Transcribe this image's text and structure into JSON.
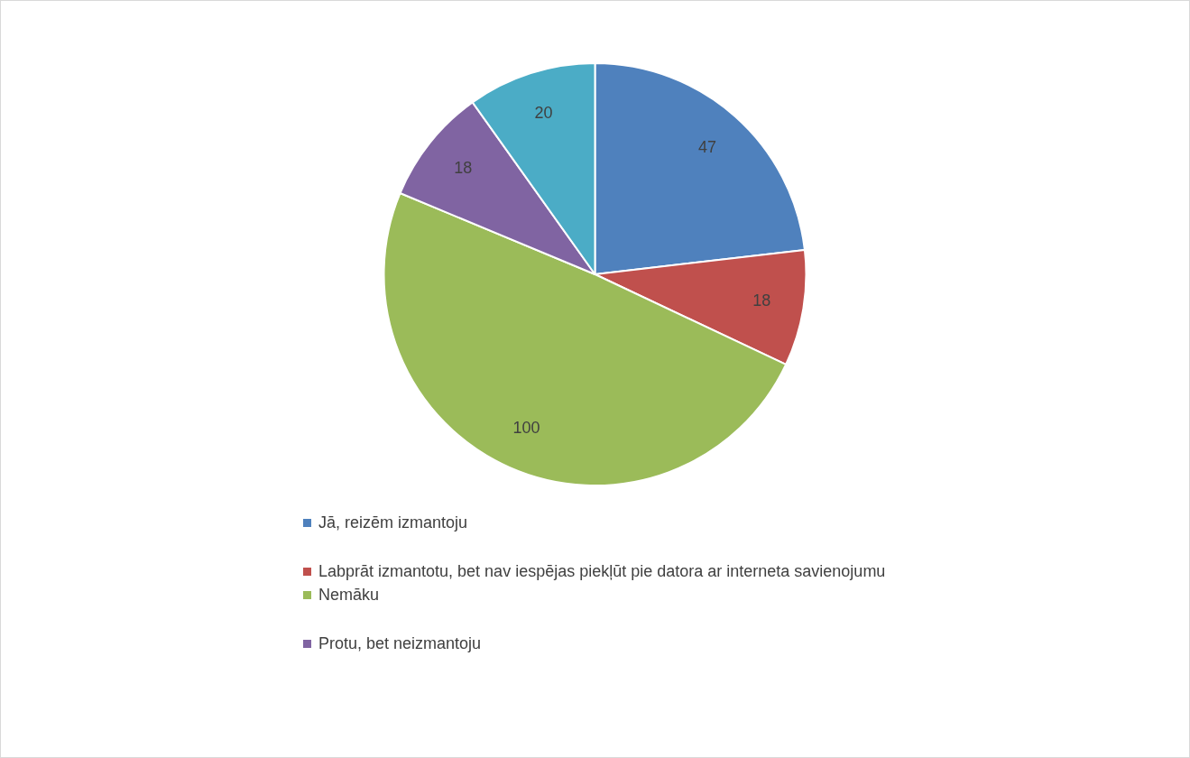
{
  "chart_data": {
    "type": "pie",
    "categories": [
      "Jā, reizēm izmantoju",
      "Labprāt izmantotu, bet nav iespējas piekļūt pie datora ar interneta savienojumu",
      "Nemāku",
      "Protu, bet neizmantoju",
      null
    ],
    "values": [
      47,
      18,
      100,
      18,
      20
    ],
    "colors": [
      "#4f81bd",
      "#c0504d",
      "#9bbb59",
      "#8064a2",
      "#4bacc6"
    ],
    "data_labels": true,
    "legend": "bottom"
  }
}
